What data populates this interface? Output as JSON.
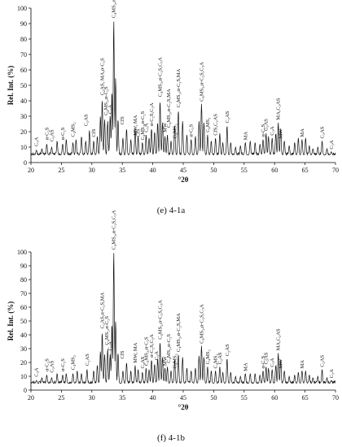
{
  "chart_data": [
    {
      "type": "line",
      "caption": "(e) 4-1a",
      "xlabel": "°2θ",
      "ylabel": "Rel. Int. (%)",
      "xlim": [
        20,
        70
      ],
      "ylim": [
        0,
        100
      ],
      "xticks": [
        20,
        25,
        30,
        35,
        40,
        45,
        50,
        55,
        60,
        65,
        70
      ],
      "yticks": [
        0,
        10,
        20,
        30,
        40,
        50,
        60,
        70,
        80,
        90,
        100
      ],
      "grid": false,
      "series": [
        {
          "peaks": [
            [
              20.9,
              8
            ],
            [
              21.8,
              9
            ],
            [
              22.6,
              12
            ],
            [
              23.4,
              10
            ],
            [
              24.3,
              14
            ],
            [
              25.2,
              12
            ],
            [
              25.8,
              15
            ],
            [
              26.9,
              13
            ],
            [
              27.4,
              15
            ],
            [
              28.3,
              17
            ],
            [
              29.0,
              14
            ],
            [
              29.6,
              21
            ],
            [
              30.3,
              14
            ],
            [
              30.9,
              17
            ],
            [
              31.4,
              30
            ],
            [
              31.7,
              41
            ],
            [
              32.1,
              28
            ],
            [
              32.6,
              27
            ],
            [
              33.0,
              30
            ],
            [
              33.3,
              46
            ],
            [
              33.6,
              92
            ],
            [
              33.9,
              55
            ],
            [
              34.3,
              28
            ],
            [
              35.1,
              16
            ],
            [
              35.7,
              22
            ],
            [
              36.4,
              15
            ],
            [
              37.1,
              22
            ],
            [
              37.6,
              17
            ],
            [
              38.3,
              13
            ],
            [
              38.9,
              18
            ],
            [
              39.4,
              16
            ],
            [
              39.8,
              22
            ],
            [
              40.3,
              20
            ],
            [
              40.8,
              26
            ],
            [
              41.2,
              40
            ],
            [
              41.6,
              26
            ],
            [
              42.0,
              17
            ],
            [
              42.4,
              18
            ],
            [
              43.0,
              14
            ],
            [
              43.6,
              24
            ],
            [
              44.2,
              34
            ],
            [
              44.9,
              27
            ],
            [
              45.6,
              18
            ],
            [
              46.3,
              15
            ],
            [
              47.0,
              17
            ],
            [
              47.6,
              27
            ],
            [
              48.0,
              38
            ],
            [
              48.4,
              26
            ],
            [
              49.0,
              18
            ],
            [
              49.6,
              14
            ],
            [
              50.3,
              16
            ],
            [
              51.0,
              19
            ],
            [
              51.5,
              13
            ],
            [
              52.2,
              24
            ],
            [
              52.8,
              13
            ],
            [
              53.6,
              10
            ],
            [
              54.4,
              11
            ],
            [
              55.2,
              13
            ],
            [
              56.0,
              14
            ],
            [
              56.8,
              13
            ],
            [
              57.6,
              12
            ],
            [
              58.1,
              15
            ],
            [
              58.6,
              19
            ],
            [
              59.0,
              17
            ],
            [
              59.6,
              16
            ],
            [
              60.2,
              19
            ],
            [
              60.6,
              26
            ],
            [
              61.0,
              22
            ],
            [
              61.6,
              14
            ],
            [
              62.4,
              11
            ],
            [
              63.3,
              13
            ],
            [
              63.9,
              16
            ],
            [
              64.5,
              15
            ],
            [
              65.1,
              16
            ],
            [
              65.7,
              11
            ],
            [
              66.3,
              9
            ],
            [
              67.1,
              10
            ],
            [
              67.8,
              14
            ],
            [
              68.6,
              9
            ],
            [
              69.3,
              7
            ]
          ]
        }
      ],
      "annotations": [
        {
          "x": 20.9,
          "y": 10,
          "text": "C₃A"
        },
        {
          "x": 22.6,
          "y": 14,
          "text": "α-C₂S"
        },
        {
          "x": 23.4,
          "y": 13,
          "text": "C₂AS"
        },
        {
          "x": 25.2,
          "y": 14,
          "text": "α-C₂S"
        },
        {
          "x": 26.9,
          "y": 16,
          "text": "C₄MS₂"
        },
        {
          "x": 29.0,
          "y": 23,
          "text": "C₂AS"
        },
        {
          "x": 30.3,
          "y": 16,
          "text": "CfS"
        },
        {
          "x": 31.7,
          "y": 43,
          "text": "C₂AS, MA,α-C₂S"
        },
        {
          "x": 32.3,
          "y": 30,
          "text": "C₄MS₂,α-C₂S"
        },
        {
          "x": 33.0,
          "y": 31,
          "text": "C₃A"
        },
        {
          "x": 33.6,
          "y": 93,
          "text": "C₄MS₂,α-C₂S,C₃A"
        },
        {
          "x": 35.0,
          "y": 24,
          "text": "CfS"
        },
        {
          "x": 37.1,
          "y": 17,
          "text": "MW, MA"
        },
        {
          "x": 37.6,
          "y": 16,
          "text": "CfS"
        },
        {
          "x": 38.3,
          "y": 14,
          "text": "C₄MS₂,α-C₂S"
        },
        {
          "x": 38.9,
          "y": 19,
          "text": "C₃A"
        },
        {
          "x": 39.8,
          "y": 23,
          "text": "α-C₂S,C₃A"
        },
        {
          "x": 41.2,
          "y": 42,
          "text": "C₄MS₂,α-C₂S,C₃A"
        },
        {
          "x": 42.0,
          "y": 19,
          "text": "MW"
        },
        {
          "x": 42.6,
          "y": 22,
          "text": "C₄MS₂,α-C₂S,MA"
        },
        {
          "x": 43.6,
          "y": 15,
          "text": "C₄MS₂"
        },
        {
          "x": 44.2,
          "y": 35,
          "text": "C₄MS₂,α-C₂S,MA"
        },
        {
          "x": 46.3,
          "y": 16,
          "text": "α-C₂S"
        },
        {
          "x": 48.0,
          "y": 39,
          "text": "C₄MS₂,α-C₂S,C₃A"
        },
        {
          "x": 49.0,
          "y": 19,
          "text": "C₄MS₂"
        },
        {
          "x": 50.3,
          "y": 17,
          "text": "CfS,C₂AS"
        },
        {
          "x": 52.2,
          "y": 25,
          "text": "C₂AS"
        },
        {
          "x": 55.2,
          "y": 14,
          "text": "MA"
        },
        {
          "x": 58.1,
          "y": 16,
          "text": "α-C₂S"
        },
        {
          "x": 58.6,
          "y": 20,
          "text": "C₂AS"
        },
        {
          "x": 59.6,
          "y": 17,
          "text": "C₃A"
        },
        {
          "x": 60.6,
          "y": 27,
          "text": "MA,C₂AS"
        },
        {
          "x": 61.0,
          "y": 15,
          "text": "MW"
        },
        {
          "x": 64.5,
          "y": 16,
          "text": "MA"
        },
        {
          "x": 67.8,
          "y": 15,
          "text": "C₂AS"
        },
        {
          "x": 69.3,
          "y": 8,
          "text": "C₃A"
        }
      ]
    },
    {
      "type": "line",
      "caption": "(f) 4-1b",
      "xlabel": "°2θ",
      "ylabel": "Rel. Int. (%)",
      "xlim": [
        20,
        70
      ],
      "ylim": [
        0,
        100
      ],
      "xticks": [
        20,
        25,
        30,
        35,
        40,
        45,
        50,
        55,
        60,
        65,
        70
      ],
      "yticks": [
        0,
        10,
        20,
        30,
        40,
        50,
        60,
        70,
        80,
        90,
        100
      ],
      "grid": false,
      "series": [
        {
          "peaks": [
            [
              20.9,
              7
            ],
            [
              21.8,
              9
            ],
            [
              22.6,
              11
            ],
            [
              23.4,
              9
            ],
            [
              24.3,
              12
            ],
            [
              25.2,
              11
            ],
            [
              25.8,
              12
            ],
            [
              26.9,
              12
            ],
            [
              27.6,
              14
            ],
            [
              28.3,
              12
            ],
            [
              29.2,
              15
            ],
            [
              30.3,
              14
            ],
            [
              30.9,
              18
            ],
            [
              31.4,
              28
            ],
            [
              31.7,
              42
            ],
            [
              32.1,
              26
            ],
            [
              32.6,
              30
            ],
            [
              33.0,
              26
            ],
            [
              33.3,
              48
            ],
            [
              33.6,
              100
            ],
            [
              33.9,
              50
            ],
            [
              34.3,
              27
            ],
            [
              35.1,
              14
            ],
            [
              35.7,
              20
            ],
            [
              36.4,
              14
            ],
            [
              37.1,
              18
            ],
            [
              37.6,
              15
            ],
            [
              38.3,
              13
            ],
            [
              38.9,
              16
            ],
            [
              39.4,
              15
            ],
            [
              39.8,
              22
            ],
            [
              40.3,
              19
            ],
            [
              40.8,
              23
            ],
            [
              41.2,
              35
            ],
            [
              41.6,
              24
            ],
            [
              42.0,
              16
            ],
            [
              42.4,
              17
            ],
            [
              43.0,
              14
            ],
            [
              43.6,
              22
            ],
            [
              44.2,
              26
            ],
            [
              44.9,
              24
            ],
            [
              45.6,
              16
            ],
            [
              46.3,
              14
            ],
            [
              47.0,
              16
            ],
            [
              47.6,
              25
            ],
            [
              48.0,
              32
            ],
            [
              48.4,
              24
            ],
            [
              49.0,
              17
            ],
            [
              49.6,
              14
            ],
            [
              50.3,
              14
            ],
            [
              51.0,
              17
            ],
            [
              51.5,
              13
            ],
            [
              52.2,
              23
            ],
            [
              52.8,
              13
            ],
            [
              53.6,
              10
            ],
            [
              54.4,
              10
            ],
            [
              55.2,
              12
            ],
            [
              56.0,
              12
            ],
            [
              56.8,
              12
            ],
            [
              57.6,
              11
            ],
            [
              58.1,
              14
            ],
            [
              58.6,
              17
            ],
            [
              59.0,
              16
            ],
            [
              59.6,
              15
            ],
            [
              60.2,
              18
            ],
            [
              60.6,
              27
            ],
            [
              61.0,
              22
            ],
            [
              61.6,
              14
            ],
            [
              62.4,
              10
            ],
            [
              63.3,
              11
            ],
            [
              63.9,
              13
            ],
            [
              64.5,
              14
            ],
            [
              65.1,
              14
            ],
            [
              65.7,
              11
            ],
            [
              66.3,
              9
            ],
            [
              67.1,
              10
            ],
            [
              67.8,
              15
            ],
            [
              68.6,
              9
            ],
            [
              69.3,
              7
            ]
          ]
        }
      ],
      "annotations": [
        {
          "x": 20.9,
          "y": 9,
          "text": "C₃A"
        },
        {
          "x": 22.6,
          "y": 13,
          "text": "α-C₂S"
        },
        {
          "x": 23.4,
          "y": 12,
          "text": "C₂AS"
        },
        {
          "x": 25.2,
          "y": 13,
          "text": "α-C₂S"
        },
        {
          "x": 26.9,
          "y": 14,
          "text": "C₄MS₂"
        },
        {
          "x": 29.2,
          "y": 17,
          "text": "C₂AS"
        },
        {
          "x": 31.7,
          "y": 44,
          "text": "C₂AS,α-C₂S,MA"
        },
        {
          "x": 32.4,
          "y": 32,
          "text": "C₄MS₂,α-C₂S"
        },
        {
          "x": 33.0,
          "y": 28,
          "text": "C₃A"
        },
        {
          "x": 33.6,
          "y": 101,
          "text": "C₄MS₂,α-C₂S,C₃A"
        },
        {
          "x": 35.0,
          "y": 22,
          "text": "CfS"
        },
        {
          "x": 37.1,
          "y": 19,
          "text": "MW, MA"
        },
        {
          "x": 38.3,
          "y": 15,
          "text": "C₂AS"
        },
        {
          "x": 38.9,
          "y": 17,
          "text": "C₄MS₂,α-C₂S"
        },
        {
          "x": 39.8,
          "y": 23,
          "text": "α-C₂S,C₃A"
        },
        {
          "x": 40.6,
          "y": 21,
          "text": "C₃A"
        },
        {
          "x": 41.2,
          "y": 36,
          "text": "C₄MS₂,α-C₂S,C₃A"
        },
        {
          "x": 42.0,
          "y": 17,
          "text": "MW"
        },
        {
          "x": 42.6,
          "y": 19,
          "text": "C₄MS₂,α-C₂S"
        },
        {
          "x": 43.6,
          "y": 15,
          "text": "C₄MS₂"
        },
        {
          "x": 44.2,
          "y": 27,
          "text": "C₄MS₂,α-C₂S,MA"
        },
        {
          "x": 48.0,
          "y": 33,
          "text": "C₄MS₂,α-C₂S,C₃A"
        },
        {
          "x": 49.0,
          "y": 18,
          "text": "C₄MS₂"
        },
        {
          "x": 50.3,
          "y": 15,
          "text": "C₄MS₂"
        },
        {
          "x": 51.0,
          "y": 18,
          "text": "C₂AS"
        },
        {
          "x": 52.2,
          "y": 24,
          "text": "C₂AS"
        },
        {
          "x": 55.2,
          "y": 13,
          "text": "MA"
        },
        {
          "x": 58.1,
          "y": 15,
          "text": "α-C₂S"
        },
        {
          "x": 58.6,
          "y": 18,
          "text": "C₂AS"
        },
        {
          "x": 59.6,
          "y": 16,
          "text": "C₃A"
        },
        {
          "x": 60.6,
          "y": 28,
          "text": "MA,C₂AS"
        },
        {
          "x": 61.0,
          "y": 15,
          "text": "MW"
        },
        {
          "x": 64.5,
          "y": 15,
          "text": "MA"
        },
        {
          "x": 67.8,
          "y": 16,
          "text": "C₂AS"
        },
        {
          "x": 69.3,
          "y": 8,
          "text": "C₃A"
        }
      ]
    }
  ]
}
